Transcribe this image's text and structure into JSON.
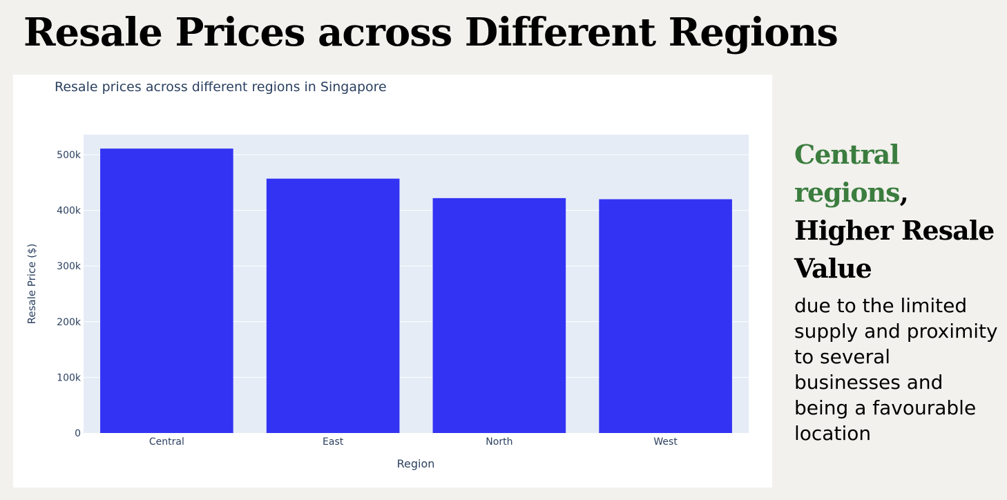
{
  "slide": {
    "title": "Resale Prices across Different Regions",
    "highlight": "Central regions",
    "comma": ",",
    "headline_rest": "Higher Resale Value",
    "body": "due to the limited supply and proximity to several businesses and being a favourable location"
  },
  "colors": {
    "bar": "#3333f3",
    "plot_bg": "#e5ecf6",
    "accent": "#3b7d3f"
  },
  "chart_data": {
    "type": "bar",
    "title": "Resale prices across different regions in Singapore",
    "xlabel": "Region",
    "ylabel": "Resale Price ($)",
    "categories": [
      "Central",
      "East",
      "North",
      "West"
    ],
    "values": [
      511000,
      457000,
      422000,
      420000
    ],
    "ylim": [
      0,
      536000
    ],
    "yticks": [
      0,
      100000,
      200000,
      300000,
      400000,
      500000
    ],
    "ytick_labels": [
      "0",
      "100k",
      "200k",
      "300k",
      "400k",
      "500k"
    ],
    "grid": true,
    "legend": "none"
  }
}
